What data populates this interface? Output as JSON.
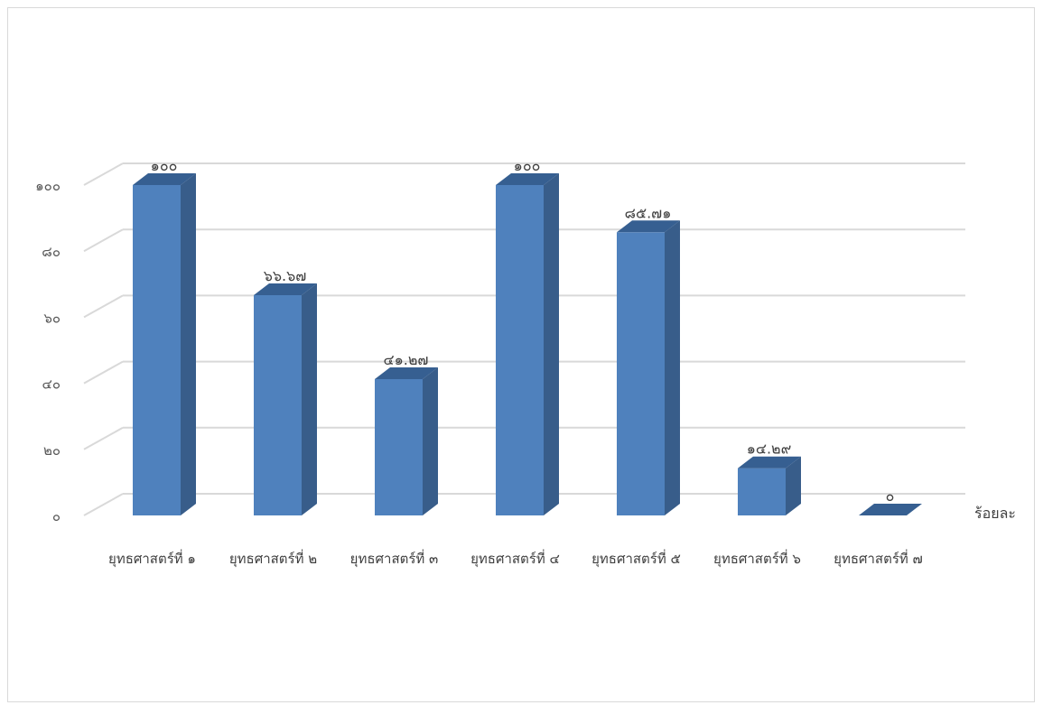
{
  "chart_data": {
    "type": "bar",
    "categories": [
      "ยุทธศาสตร์ที่ ๑",
      "ยุทธศาสตร์ที่ ๒",
      "ยุทธศาสตร์ที่ ๓",
      "ยุทธศาสตร์ที่ ๔",
      "ยุทธศาสตร์ที่ ๕",
      "ยุทธศาสตร์ที่ ๖",
      "ยุทธศาสตร์ที่ ๗"
    ],
    "values": [
      100,
      66.67,
      41.27,
      100,
      85.71,
      14.29,
      0
    ],
    "data_labels": [
      "๑๐๐",
      "๖๖.๖๗",
      "๔๑.๒๗",
      "๑๐๐",
      "๘๕.๗๑",
      "๑๔.๒๙",
      "๐"
    ],
    "y_ticks": [
      0,
      20,
      40,
      60,
      80,
      100
    ],
    "y_tick_labels": [
      "๐",
      "๒๐",
      "๔๐",
      "๖๐",
      "๘๐",
      "๑๐๐"
    ],
    "ylim": [
      0,
      100
    ],
    "title": "",
    "xlabel": "",
    "ylabel": "",
    "series_label": "ร้อยละ",
    "grid": true,
    "style": "3d-column",
    "colors": {
      "front": "#4f81bd",
      "side": "#385d8a",
      "top": "#365f91",
      "grid": "#d9d9d9",
      "text": "#404040"
    }
  }
}
